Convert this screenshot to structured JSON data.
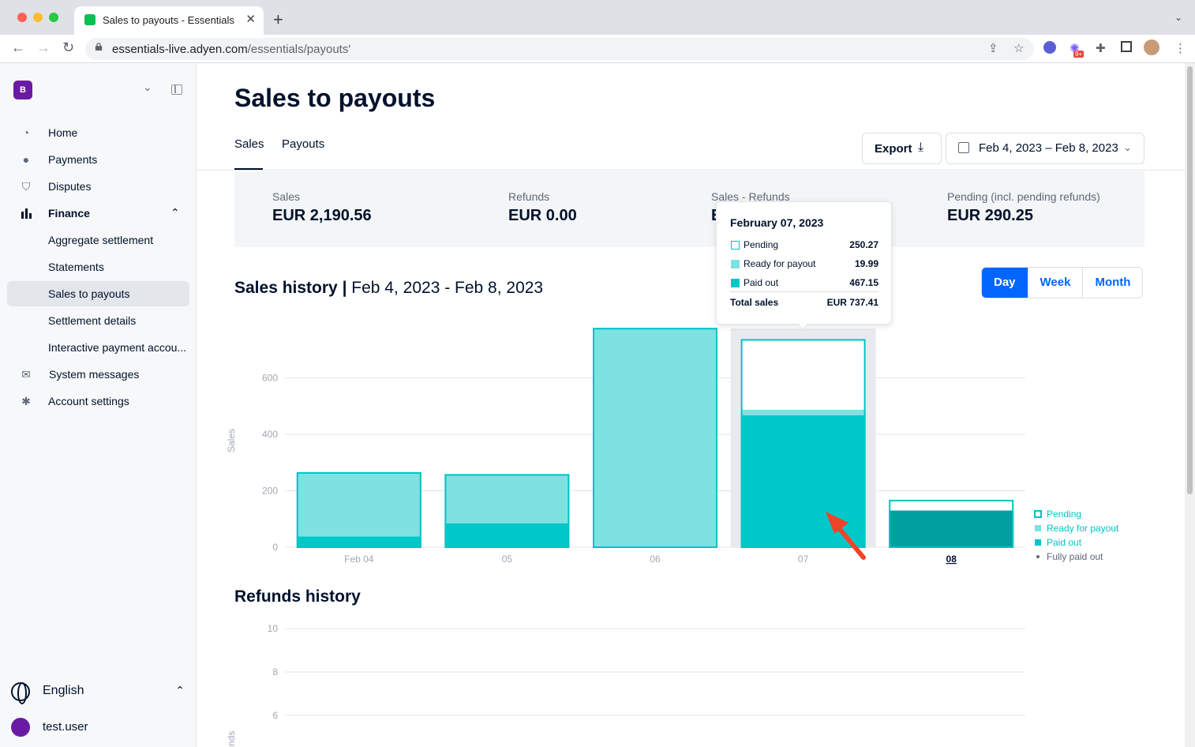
{
  "browser": {
    "tab_title": "Sales to payouts - Essentials",
    "url_host": "essentials-live.adyen.com",
    "url_path": "/essentials/payouts'",
    "ext_badge": "9+"
  },
  "sidebar": {
    "account_initial": "B",
    "items": [
      {
        "label": "Home",
        "icon": "home-icon"
      },
      {
        "label": "Payments",
        "icon": "payments-icon"
      },
      {
        "label": "Disputes",
        "icon": "shield-icon"
      },
      {
        "label": "Finance",
        "icon": "bar-chart-icon"
      },
      {
        "label": "Aggregate settlement"
      },
      {
        "label": "Statements"
      },
      {
        "label": "Sales to payouts"
      },
      {
        "label": "Settlement details"
      },
      {
        "label": "Interactive payment accou..."
      },
      {
        "label": "System messages",
        "icon": "mail-icon"
      },
      {
        "label": "Account settings",
        "icon": "gear-icon"
      }
    ],
    "language": "English",
    "user": "test.user"
  },
  "page": {
    "title": "Sales to payouts",
    "tabs": [
      "Sales",
      "Payouts"
    ],
    "export_label": "Export",
    "date_range": "Feb 4, 2023 – Feb 8, 2023"
  },
  "summary": [
    {
      "label": "Sales",
      "value": "EUR 2,190.56"
    },
    {
      "label": "Refunds",
      "value": "EUR 0.00"
    },
    {
      "label": "Sales - Refunds",
      "value": "E"
    },
    {
      "label": "Pending (incl. pending refunds)",
      "value": "EUR 290.25"
    }
  ],
  "sales_history": {
    "title": "Sales history",
    "range": "Feb 4, 2023 - Feb 8, 2023",
    "granularity": [
      "Day",
      "Week",
      "Month"
    ],
    "selected_granularity": "Day"
  },
  "tooltip": {
    "title": "February 07, 2023",
    "rows": [
      {
        "label": "Pending",
        "value": "250.27"
      },
      {
        "label": "Ready for payout",
        "value": "19.99"
      },
      {
        "label": "Paid out",
        "value": "467.15"
      }
    ],
    "total_label": "Total sales",
    "total_value": "EUR 737.41"
  },
  "refunds_history": {
    "title": "Refunds history"
  },
  "colors": {
    "pending": "#ffffff",
    "ready": "#80e1e1",
    "paid": "#00c8c8",
    "fully_paid": "#00a0a0",
    "outline": "#00c4c4",
    "accent": "#0066ff"
  },
  "chart_data": [
    {
      "type": "bar",
      "stacked": true,
      "categories": [
        "Feb 04",
        "05",
        "06",
        "07",
        "08"
      ],
      "ylabel": "Sales",
      "ylim": [
        0,
        780
      ],
      "yticks": [
        0,
        200,
        400,
        600
      ],
      "grid": true,
      "legend": "right",
      "highlighted_category": "07",
      "series": [
        {
          "name": "Paid out",
          "values": [
            38,
            85,
            0,
            467.15,
            0
          ]
        },
        {
          "name": "Ready for payout",
          "values": [
            228,
            174,
            777,
            19.99,
            0
          ]
        },
        {
          "name": "Pending",
          "values": [
            0,
            0,
            0,
            250.27,
            38
          ]
        },
        {
          "name": "Fully paid out",
          "values": [
            0,
            0,
            0,
            0,
            130
          ]
        }
      ],
      "legend_entries": [
        "Pending",
        "Ready for payout",
        "Paid out",
        "Fully paid out"
      ]
    },
    {
      "type": "bar",
      "ylabel": "Refunds",
      "yticks": [
        6,
        8,
        10
      ],
      "grid": true
    }
  ]
}
